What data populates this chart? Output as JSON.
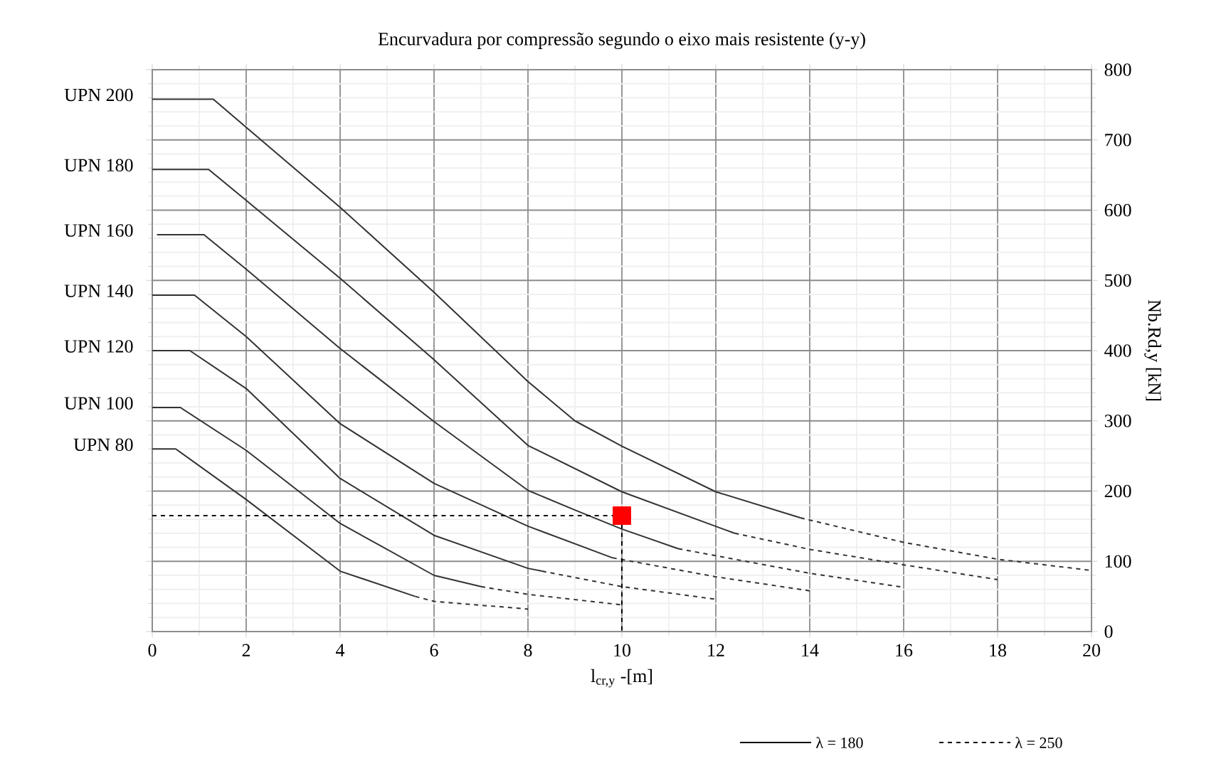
{
  "chart_data": {
    "type": "line",
    "title": "Encurvadura por compressão segundo o eixo mais resistente  (y-y)",
    "xlabel": "l$_{cr,y}$ -[m]",
    "ylabel": "Nb.Rd,y [kN]",
    "xlim": [
      0,
      20
    ],
    "ylim": [
      0,
      800
    ],
    "xticks": [
      0,
      2,
      4,
      6,
      8,
      10,
      12,
      14,
      16,
      18,
      20
    ],
    "yticks": [
      0,
      100,
      200,
      300,
      400,
      500,
      600,
      700,
      800
    ],
    "grid": true,
    "series": [
      {
        "name": "UPN 200",
        "color": "#333333",
        "line_style": "solid",
        "x": [
          0,
          1.3,
          2,
          4,
          6,
          8,
          9,
          10,
          12,
          13.8
        ],
        "values": [
          758,
          758,
          718,
          604,
          483,
          356,
          300,
          264,
          199,
          162
        ]
      },
      {
        "color": "#333333",
        "line_style": "dashed",
        "x": [
          13.8,
          16,
          18,
          20
        ],
        "values": [
          162,
          127,
          103,
          87
        ]
      },
      {
        "name": "UPN 180",
        "color": "#333333",
        "line_style": "solid",
        "x": [
          0,
          1.2,
          2,
          4,
          6,
          8,
          10,
          12.4
        ],
        "values": [
          658,
          658,
          614,
          503,
          387,
          265,
          199,
          140
        ]
      },
      {
        "color": "#333333",
        "line_style": "dashed",
        "x": [
          12.4,
          14,
          16,
          18
        ],
        "values": [
          140,
          117,
          95,
          74
        ]
      },
      {
        "name": "UPN 160",
        "color": "#333333",
        "line_style": "solid",
        "x": [
          0.1,
          1.1,
          2,
          4,
          6,
          8,
          9,
          10,
          11.2
        ],
        "values": [
          565,
          565,
          516,
          403,
          299,
          201,
          173,
          146,
          118
        ]
      },
      {
        "color": "#333333",
        "line_style": "dashed",
        "x": [
          11.2,
          12,
          14,
          16
        ],
        "values": [
          118,
          108,
          83,
          63
        ]
      },
      {
        "name": "UPN 140",
        "color": "#333333",
        "line_style": "solid",
        "x": [
          0,
          0.9,
          2,
          4,
          6,
          8,
          9.8
        ],
        "values": [
          479,
          479,
          420,
          296,
          211,
          150,
          105
        ]
      },
      {
        "color": "#333333",
        "line_style": "dashed",
        "x": [
          9.8,
          12,
          14
        ],
        "values": [
          105,
          78,
          58
        ]
      },
      {
        "name": "UPN 120",
        "color": "#333333",
        "line_style": "solid",
        "x": [
          0,
          0.8,
          2,
          4,
          6,
          8,
          8.3
        ],
        "values": [
          400,
          400,
          346,
          218,
          137,
          90,
          86
        ]
      },
      {
        "color": "#333333",
        "line_style": "dashed",
        "x": [
          8.3,
          10,
          12
        ],
        "values": [
          86,
          64,
          46
        ]
      },
      {
        "name": "UPN 100",
        "color": "#333333",
        "line_style": "solid",
        "x": [
          0,
          0.6,
          2,
          4,
          6,
          7
        ],
        "values": [
          319,
          319,
          258,
          154,
          80,
          64
        ]
      },
      {
        "color": "#333333",
        "line_style": "dashed",
        "x": [
          7,
          8,
          10
        ],
        "values": [
          64,
          53,
          38
        ]
      },
      {
        "name": "UPN 80",
        "color": "#333333",
        "line_style": "solid",
        "x": [
          0,
          0.5,
          2,
          4,
          5.6
        ],
        "values": [
          260,
          260,
          188,
          86,
          50
        ]
      },
      {
        "color": "#333333",
        "line_style": "dashed",
        "x": [
          5.6,
          6,
          8
        ],
        "values": [
          50,
          43,
          32
        ]
      },
      {
        "color": "#000000",
        "line_style": "dashed",
        "x": [
          0,
          10
        ],
        "values": [
          165,
          165
        ]
      },
      {
        "color": "#000000",
        "line_style": "dashed",
        "x": [
          10,
          10
        ],
        "values": [
          165,
          0
        ]
      },
      {
        "type": "scatter",
        "marker": "square",
        "color": "#ff0000",
        "x": [
          10
        ],
        "values": [
          165
        ]
      }
    ],
    "annotations": [
      "λ = 180",
      "λ = 250"
    ]
  }
}
